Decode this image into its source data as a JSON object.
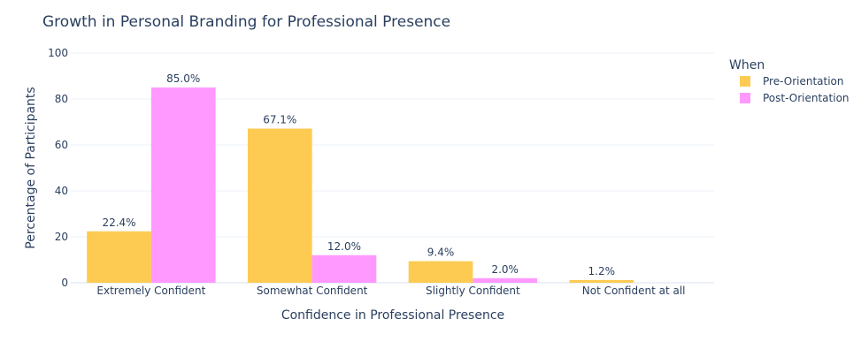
{
  "chart_data": {
    "type": "bar",
    "title": "Growth in Personal Branding for Professional Presence",
    "xlabel": "Confidence in Professional Presence",
    "ylabel": "Percentage of Participants",
    "categories": [
      "Extremely Confident",
      "Somewhat Confident",
      "Slightly Confident",
      "Not Confident at all"
    ],
    "series": [
      {
        "name": "Pre-Orientation",
        "values": [
          22.4,
          67.1,
          9.4,
          1.2
        ],
        "labels": [
          "22.4%",
          "67.1%",
          "9.4%",
          "1.2%"
        ],
        "color": "#FDCB52"
      },
      {
        "name": "Post-Orientation",
        "values": [
          85.0,
          12.0,
          2.0,
          0
        ],
        "labels": [
          "85.0%",
          "12.0%",
          "2.0%",
          ""
        ],
        "color": "#FF99FF"
      }
    ],
    "ylim": [
      0,
      100
    ],
    "yticks": [
      0,
      20,
      40,
      60,
      80,
      100
    ],
    "legend_title": "When",
    "legend_position": "top-right",
    "grid": true,
    "colors": {
      "text": "#2a3f5f",
      "grid": "#ebf0f8",
      "axis_line": "#ebf0f8",
      "background": "#ffffff"
    }
  }
}
